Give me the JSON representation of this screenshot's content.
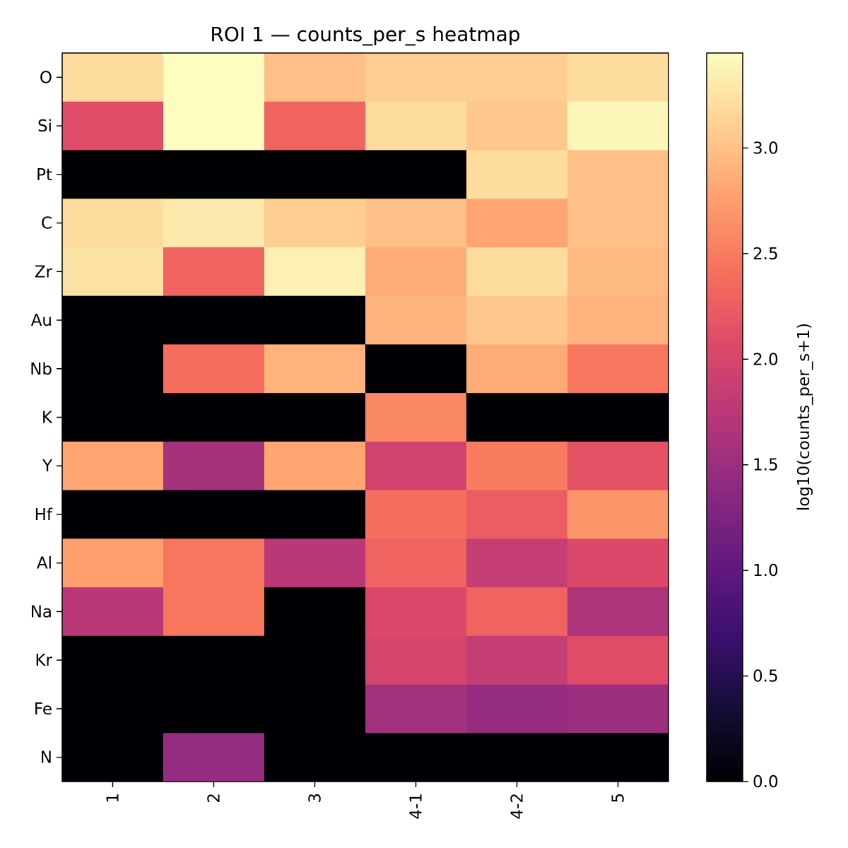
{
  "chart_data": {
    "type": "heatmap",
    "title": "ROI 1 — counts_per_s heatmap",
    "x_categories": [
      "1",
      "2",
      "3",
      "4-1",
      "4-2",
      "5"
    ],
    "y_categories": [
      "O",
      "Si",
      "Pt",
      "C",
      "Zr",
      "Au",
      "Nb",
      "K",
      "Y",
      "Hf",
      "Al",
      "Na",
      "Kr",
      "Fe",
      "N"
    ],
    "values": [
      [
        3.2,
        3.45,
        3.0,
        3.1,
        3.1,
        3.2
      ],
      [
        2.1,
        3.45,
        2.3,
        3.2,
        3.05,
        3.4
      ],
      [
        0,
        0,
        0,
        0,
        3.2,
        3.0
      ],
      [
        3.2,
        3.3,
        3.1,
        3.0,
        2.8,
        3.0
      ],
      [
        3.25,
        2.3,
        3.35,
        2.85,
        3.2,
        2.95
      ],
      [
        0,
        0,
        0,
        2.9,
        3.05,
        2.9
      ],
      [
        0,
        2.4,
        2.9,
        0,
        2.85,
        2.45
      ],
      [
        0,
        0,
        0,
        2.6,
        0,
        0
      ],
      [
        2.8,
        1.6,
        2.8,
        1.95,
        2.5,
        2.15
      ],
      [
        0,
        0,
        0,
        2.4,
        2.25,
        2.7
      ],
      [
        2.75,
        2.45,
        1.75,
        2.3,
        1.85,
        2.05
      ],
      [
        1.75,
        2.45,
        0,
        2.05,
        2.3,
        1.65
      ],
      [
        0,
        0,
        0,
        2.0,
        1.85,
        2.1
      ],
      [
        0,
        0,
        0,
        1.55,
        1.45,
        1.5
      ],
      [
        0,
        1.45,
        0,
        0,
        0,
        0
      ]
    ],
    "colorscale": "magma",
    "colorbar": {
      "label": "log10(counts_per_s+1)",
      "range": [
        0.0,
        3.45
      ],
      "ticks": [
        0.0,
        0.5,
        1.0,
        1.5,
        2.0,
        2.5,
        3.0
      ],
      "tick_labels": [
        "0.0",
        "0.5",
        "1.0",
        "1.5",
        "2.0",
        "2.5",
        "3.0"
      ]
    },
    "xlabel": "",
    "ylabel": "",
    "x_tick_rotation": "vertical",
    "grid": false
  }
}
